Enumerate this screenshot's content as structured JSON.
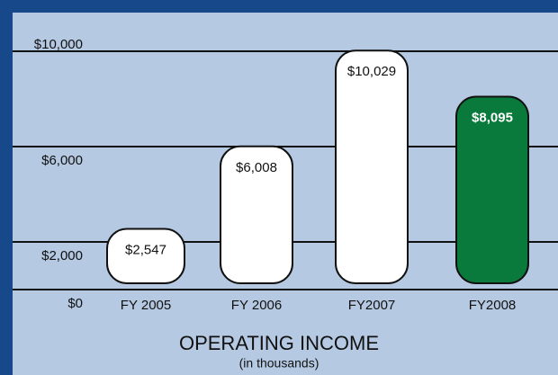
{
  "chart_data": {
    "type": "bar",
    "title": "OPERATING INCOME",
    "subtitle": "(in thousands)",
    "categories": [
      "FY 2005",
      "FY 2006",
      "FY2007",
      "FY2008"
    ],
    "values": [
      2547,
      6008,
      10029,
      8095
    ],
    "value_labels": [
      "$2,547",
      "$6,008",
      "$10,029",
      "$8,095"
    ],
    "colors": [
      "#ffffff",
      "#ffffff",
      "#ffffff",
      "#0a7a3c"
    ],
    "ylim": [
      0,
      10000
    ],
    "yticks": [
      {
        "value": 0,
        "label": "$0"
      },
      {
        "value": 2000,
        "label": "$2,000"
      },
      {
        "value": 6000,
        "label": "$6,000"
      },
      {
        "value": 10000,
        "label": "$10,000"
      }
    ],
    "grid": true
  }
}
